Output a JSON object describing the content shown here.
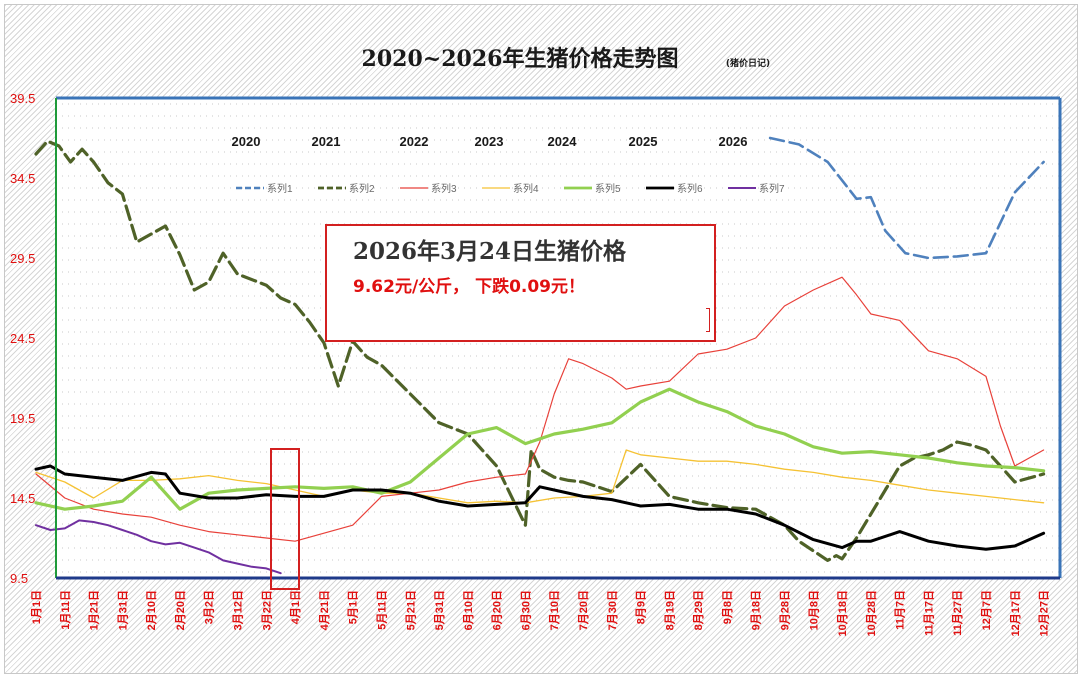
{
  "title": "2020~2026年生猪价格走势图",
  "subtitle": "(猪价日记)",
  "callout": {
    "title": "2026年3月24日生猪价格",
    "detail": "9.62元/公斤，  下跌0.09元！"
  },
  "colors": {
    "s1": "#4f81bd",
    "s2": "#4f6228",
    "s3": "#e8413a",
    "s4": "#f5c234",
    "s5": "#92d050",
    "s6": "#000000",
    "s7": "#7030a0",
    "axis_text": "#e01010",
    "plot_border": "#3a74b8",
    "callout_border": "#d32020"
  },
  "chart_data": {
    "type": "line",
    "title": "2020~2026年生猪价格走势图",
    "ylim": [
      9.5,
      39.5
    ],
    "y_ticks": [
      "39.5",
      "34.5",
      "29.5",
      "24.5",
      "19.5",
      "14.5",
      "9.5"
    ],
    "x_ticks": [
      "1月1日",
      "1月11日",
      "1月21日",
      "1月31日",
      "2月10日",
      "2月20日",
      "3月2日",
      "3月12日",
      "3月22日",
      "4月1日",
      "4月21日",
      "5月1日",
      "5月11日",
      "5月21日",
      "5月31日",
      "6月10日",
      "6月20日",
      "6月30日",
      "7月10日",
      "7月20日",
      "7月30日",
      "8月9日",
      "8月19日",
      "8月29日",
      "9月8日",
      "9月18日",
      "9月28日",
      "10月8日",
      "10月18日",
      "10月28日",
      "11月7日",
      "11月17日",
      "11月27日",
      "12月7日",
      "12月17日",
      "12月27日"
    ],
    "year_labels": [
      "2020",
      "2021",
      "2022",
      "2023",
      "2024",
      "2025",
      "2026"
    ],
    "legend_position": "top",
    "grid": false,
    "series": [
      {
        "name": "系列1",
        "dash": "dashed",
        "x": [
          25.5,
          26.5,
          27.5,
          28.5,
          29,
          29.5,
          30.2,
          31,
          32,
          33,
          34,
          35
        ],
        "y": [
          37,
          36.6,
          35.5,
          33.2,
          33.3,
          31.2,
          29.8,
          29.5,
          29.6,
          29.8,
          33.6,
          35.5
        ]
      },
      {
        "name": "系列2",
        "dash": "dashed",
        "x": [
          0,
          0.4,
          0.8,
          1.2,
          1.6,
          2,
          2.5,
          3,
          3.5,
          4,
          4.5,
          5,
          5.5,
          6,
          6.5,
          7,
          8,
          8.5,
          9,
          9.5,
          10,
          10.5,
          11,
          11.5,
          12,
          13,
          14,
          15,
          16,
          17,
          17.2,
          17.5,
          18,
          18.5,
          19,
          20,
          21,
          22,
          23,
          24,
          25,
          26,
          26.5,
          27,
          27.5,
          27.8,
          28,
          28.5,
          29,
          29.5,
          30,
          30.5,
          31,
          31.5,
          32,
          32.5,
          33,
          33.5,
          34,
          35
        ],
        "y": [
          36,
          36.8,
          36.5,
          35.5,
          36.3,
          35.5,
          34.2,
          33.5,
          30.5,
          31,
          31.5,
          29.7,
          27.5,
          28,
          29.8,
          28.5,
          27.8,
          27,
          26.6,
          25.5,
          24.2,
          21.5,
          24.3,
          23.3,
          22.8,
          21,
          19.2,
          18.5,
          16.5,
          12.8,
          17.5,
          16.3,
          15.8,
          15.6,
          15.5,
          14.9,
          16.6,
          14.6,
          14.2,
          13.9,
          13.8,
          12.8,
          11.8,
          11.2,
          10.6,
          10.9,
          10.7,
          12,
          13.5,
          15,
          16.5,
          17,
          17.2,
          17.5,
          18,
          17.8,
          17.5,
          16.5,
          15.5,
          16
        ]
      },
      {
        "name": "系列3",
        "dash": "solid",
        "x": [
          0,
          1,
          2,
          3,
          4,
          5,
          6,
          7,
          8,
          9,
          10,
          11,
          12,
          13,
          14,
          15,
          16,
          17,
          17.5,
          18,
          18.5,
          19,
          20,
          20.5,
          21,
          22,
          23,
          24,
          25,
          26,
          27,
          28,
          28.5,
          29,
          29.5,
          30,
          31,
          32,
          33,
          33.5,
          34,
          35
        ],
        "y": [
          16,
          14.5,
          13.8,
          13.5,
          13.3,
          12.8,
          12.4,
          12.2,
          12,
          11.8,
          12.3,
          12.8,
          14.6,
          14.8,
          15,
          15.5,
          15.8,
          16,
          18,
          21,
          23.2,
          22.9,
          22,
          21.3,
          21.5,
          21.8,
          23.5,
          23.8,
          24.5,
          26.5,
          27.5,
          28.3,
          27.2,
          26,
          25.8,
          25.6,
          23.7,
          23.2,
          22.1,
          19,
          16.5,
          17.5
        ]
      },
      {
        "name": "系列4",
        "dash": "solid",
        "x": [
          0,
          1,
          2,
          3,
          4,
          5,
          6,
          7,
          8,
          9,
          10,
          11,
          12,
          13,
          14,
          15,
          16,
          17,
          18,
          19,
          20,
          20.5,
          21,
          22,
          23,
          24,
          25,
          26,
          27,
          28,
          29,
          30,
          31,
          32,
          33,
          34,
          35
        ],
        "y": [
          16.1,
          15.5,
          14.5,
          15.6,
          15.6,
          15.7,
          15.9,
          15.6,
          15.4,
          15,
          14.6,
          15,
          14.8,
          14.8,
          14.5,
          14.2,
          14.3,
          14.2,
          14.5,
          14.6,
          14.8,
          17.5,
          17.2,
          17,
          16.8,
          16.8,
          16.6,
          16.3,
          16.1,
          15.8,
          15.6,
          15.3,
          15,
          14.8,
          14.6,
          14.4,
          14.2
        ]
      },
      {
        "name": "系列5",
        "dash": "solid",
        "x": [
          0,
          1,
          2,
          3,
          4,
          5,
          6,
          7,
          8,
          9,
          10,
          11,
          12,
          13,
          14,
          15,
          16,
          17,
          18,
          19,
          20,
          21,
          22,
          23,
          24,
          25,
          26,
          27,
          28,
          29,
          30,
          31,
          32,
          33,
          34,
          35
        ],
        "y": [
          14.2,
          13.8,
          14,
          14.3,
          15.8,
          13.8,
          14.8,
          15,
          15.1,
          15.2,
          15.1,
          15.2,
          14.8,
          15.5,
          17,
          18.5,
          18.9,
          17.9,
          18.5,
          18.8,
          19.2,
          20.5,
          21.3,
          20.5,
          19.9,
          19,
          18.5,
          17.7,
          17.3,
          17.4,
          17.2,
          17,
          16.7,
          16.5,
          16.4,
          16.2
        ]
      },
      {
        "name": "系列6",
        "dash": "solid",
        "x": [
          0,
          0.5,
          1,
          2,
          3,
          4,
          4.5,
          5,
          6,
          7,
          8,
          9,
          10,
          11,
          12,
          13,
          14,
          15,
          16,
          17,
          17.5,
          18,
          19,
          20,
          21,
          22,
          23,
          24,
          25,
          26,
          27,
          28,
          28.5,
          29,
          30,
          31,
          32,
          33,
          34,
          35
        ],
        "y": [
          16.3,
          16.5,
          16,
          15.8,
          15.6,
          16.1,
          16,
          14.8,
          14.5,
          14.5,
          14.7,
          14.6,
          14.6,
          15,
          15,
          14.8,
          14.3,
          14,
          14.1,
          14.2,
          15.2,
          15,
          14.6,
          14.4,
          14,
          14.1,
          13.8,
          13.8,
          13.5,
          12.8,
          11.9,
          11.4,
          11.8,
          11.8,
          12.4,
          11.8,
          11.5,
          11.3,
          11.5,
          12.3
        ]
      },
      {
        "name": "系列7",
        "dash": "solid",
        "x": [
          0,
          0.5,
          1,
          1.5,
          2,
          2.5,
          3,
          3.5,
          4,
          4.5,
          5,
          5.5,
          6,
          6.5,
          7,
          7.5,
          8,
          8.5
        ],
        "y": [
          12.8,
          12.5,
          12.6,
          13.1,
          13,
          12.8,
          12.5,
          12.2,
          11.8,
          11.6,
          11.7,
          11.4,
          11.1,
          10.6,
          10.4,
          10.2,
          10.1,
          9.8
        ]
      }
    ]
  }
}
